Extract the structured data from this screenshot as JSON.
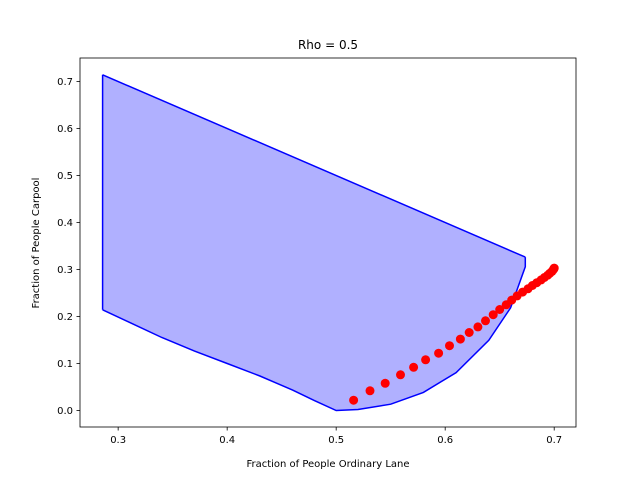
{
  "chart_data": {
    "type": "area",
    "title": "Rho = 0.5",
    "xlabel": "Fraction of People Ordinary Lane",
    "ylabel": "Fraction of People Carpool",
    "xlim": [
      0.265,
      0.72
    ],
    "ylim": [
      -0.035,
      0.75
    ],
    "xticks": [
      0.3,
      0.4,
      0.5,
      0.6,
      0.7
    ],
    "xtick_labels": [
      "0.3",
      "0.4",
      "0.5",
      "0.6",
      "0.7"
    ],
    "yticks": [
      0.0,
      0.1,
      0.2,
      0.3,
      0.4,
      0.5,
      0.6,
      0.7
    ],
    "ytick_labels": [
      "0.0",
      "0.1",
      "0.2",
      "0.3",
      "0.4",
      "0.5",
      "0.6",
      "0.7"
    ],
    "grid": false,
    "region": {
      "fill_color": "#b0b0ff",
      "line_color": "#0000ff",
      "upper_boundary": [
        [
          0.2857,
          0.7143
        ],
        [
          0.6735,
          0.3265
        ]
      ],
      "lower_boundary": [
        [
          0.2857,
          0.2143
        ],
        [
          0.31,
          0.188
        ],
        [
          0.34,
          0.1553
        ],
        [
          0.37,
          0.1264
        ],
        [
          0.4,
          0.1
        ],
        [
          0.43,
          0.0735
        ],
        [
          0.46,
          0.0435
        ],
        [
          0.48,
          0.0212
        ],
        [
          0.5,
          0.0
        ],
        [
          0.52,
          0.0022
        ],
        [
          0.55,
          0.0135
        ],
        [
          0.58,
          0.0387
        ],
        [
          0.61,
          0.0808
        ],
        [
          0.64,
          0.1494
        ],
        [
          0.66,
          0.2186
        ],
        [
          0.6735,
          0.3061
        ]
      ]
    },
    "scatter": {
      "color": "#ff0000",
      "points": [
        [
          0.516,
          0.022
        ],
        [
          0.531,
          0.042
        ],
        [
          0.545,
          0.058
        ],
        [
          0.559,
          0.076
        ],
        [
          0.571,
          0.092
        ],
        [
          0.582,
          0.108
        ],
        [
          0.594,
          0.122
        ],
        [
          0.604,
          0.138
        ],
        [
          0.614,
          0.152
        ],
        [
          0.622,
          0.166
        ],
        [
          0.63,
          0.178
        ],
        [
          0.637,
          0.191
        ],
        [
          0.644,
          0.204
        ],
        [
          0.65,
          0.215
        ],
        [
          0.656,
          0.225
        ],
        [
          0.661,
          0.235
        ],
        [
          0.666,
          0.244
        ],
        [
          0.671,
          0.252
        ],
        [
          0.676,
          0.259
        ],
        [
          0.68,
          0.266
        ],
        [
          0.684,
          0.272
        ],
        [
          0.688,
          0.278
        ],
        [
          0.691,
          0.283
        ],
        [
          0.694,
          0.288
        ],
        [
          0.696,
          0.292
        ],
        [
          0.698,
          0.296
        ],
        [
          0.699,
          0.299
        ],
        [
          0.6995,
          0.301
        ],
        [
          0.7,
          0.303
        ]
      ]
    }
  }
}
